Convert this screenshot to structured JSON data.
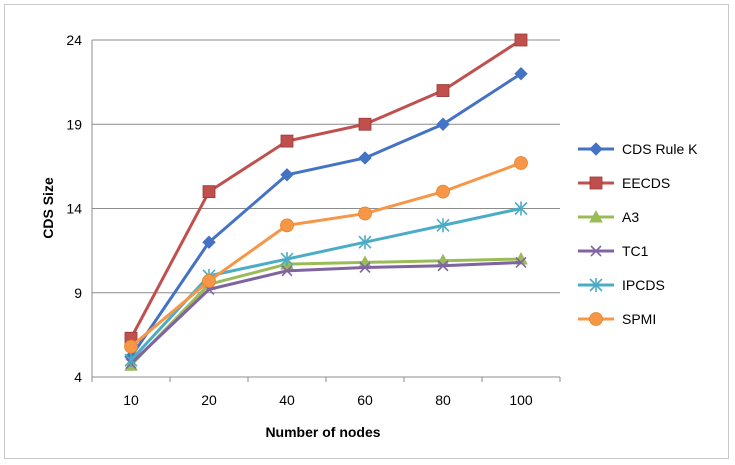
{
  "chart_data": {
    "type": "line",
    "title": "",
    "xlabel": "Number of nodes",
    "ylabel": "CDS Size",
    "categories": [
      "10",
      "20",
      "40",
      "60",
      "80",
      "100"
    ],
    "ylim": [
      4,
      24
    ],
    "yticks": [
      "4",
      "9",
      "14",
      "19",
      "24"
    ],
    "grid": true,
    "legend_position": "right",
    "series": [
      {
        "name": "CDS Rule K",
        "color": "#4472c4",
        "marker": "diamond",
        "values": [
          5.2,
          12,
          16,
          17,
          19,
          22
        ]
      },
      {
        "name": "EECDS",
        "color": "#c0504d",
        "marker": "square",
        "values": [
          6.3,
          15,
          18,
          19,
          21,
          24
        ]
      },
      {
        "name": "A3",
        "color": "#9bbb59",
        "marker": "triangle",
        "values": [
          4.7,
          9.5,
          10.7,
          10.8,
          10.9,
          11
        ]
      },
      {
        "name": "TC1",
        "color": "#8064a2",
        "marker": "x",
        "values": [
          4.8,
          9.2,
          10.3,
          10.5,
          10.6,
          10.8
        ]
      },
      {
        "name": "IPCDS",
        "color": "#4bacc6",
        "marker": "star",
        "values": [
          5.0,
          10,
          11,
          12,
          13,
          14
        ]
      },
      {
        "name": "SPMI",
        "color": "#f79646",
        "marker": "circle",
        "values": [
          5.8,
          9.7,
          13,
          13.7,
          15,
          16.7
        ]
      }
    ]
  }
}
